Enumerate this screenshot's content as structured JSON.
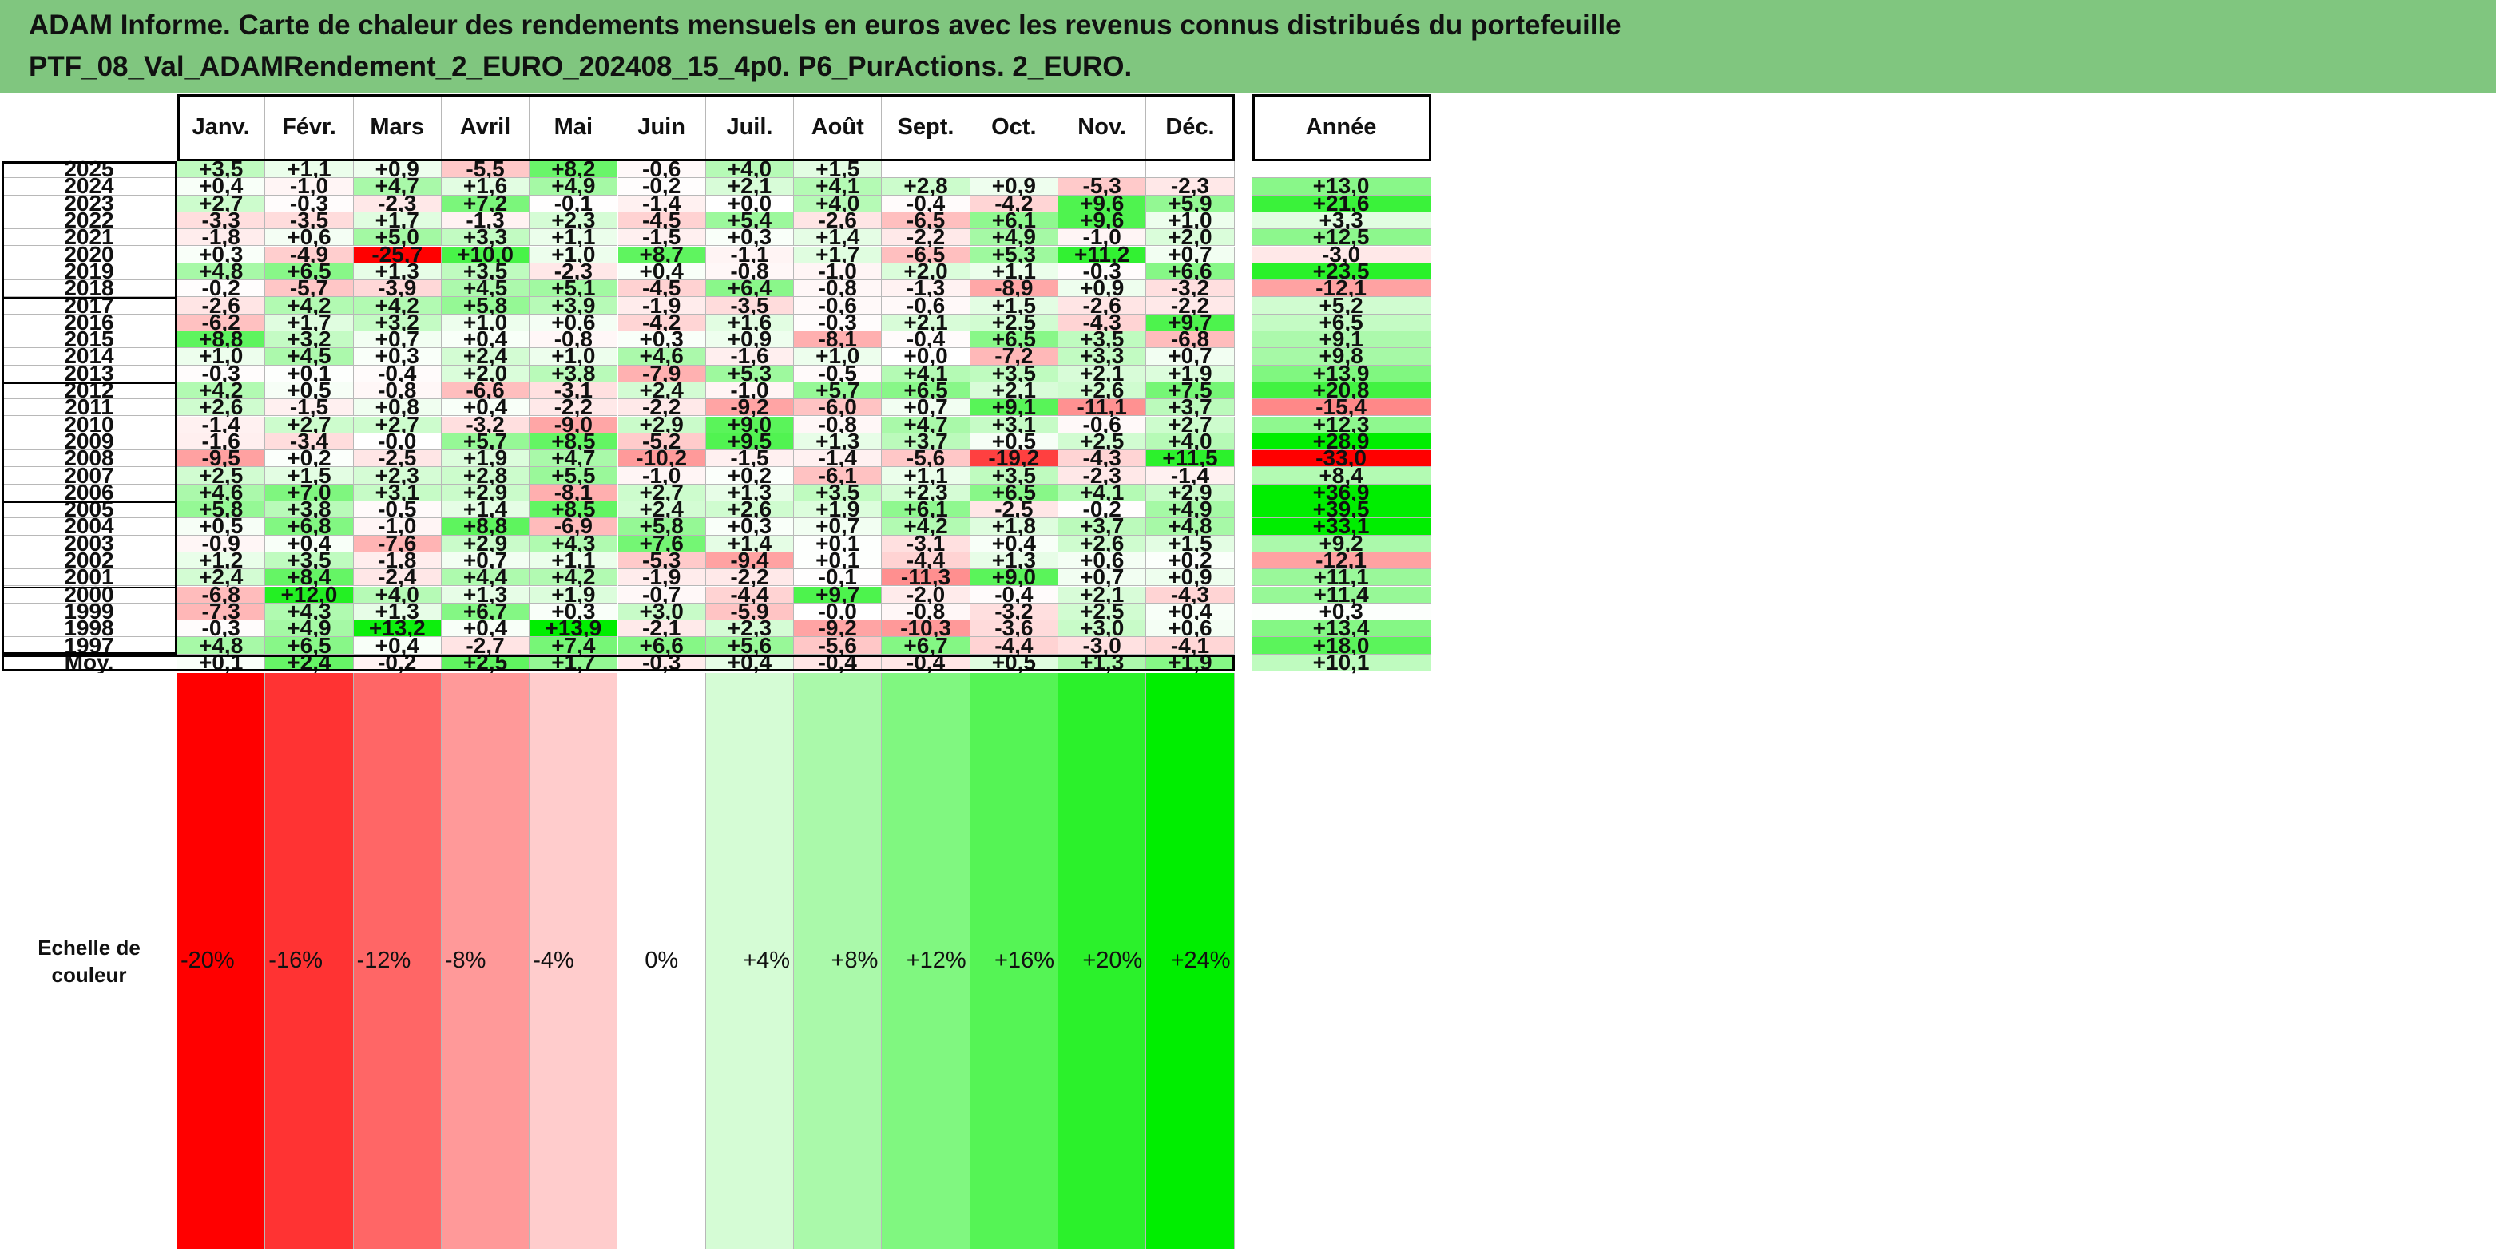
{
  "title": {
    "line1": "ADAM Informe. Carte de chaleur des rendements mensuels en euros avec les revenus connus distribués du portefeuille",
    "line2": "PTF_08_Val_ADAMRendement_2_EURO_202408_15_4p0. P6_PurActions. 2_EURO."
  },
  "colors": {
    "title_bg": "#80c67f",
    "negative_max": "#ff0000",
    "positive_max": "#00ee00"
  },
  "chart_data": {
    "type": "heatmap",
    "columns": [
      "Janv.",
      "Févr.",
      "Mars",
      "Avril",
      "Mai",
      "Juin",
      "Juil.",
      "Août",
      "Sept.",
      "Oct.",
      "Nov.",
      "Déc."
    ],
    "annual_label": "Année",
    "rows": [
      {
        "year": "2025",
        "months": [
          "+3,5",
          "+1,1",
          "+0,9",
          "-5,5",
          "+8,2",
          "-0,6",
          "+4,0",
          "+1,5",
          "",
          "",
          "",
          ""
        ],
        "annual": ""
      },
      {
        "year": "2024",
        "months": [
          "+0,4",
          "-1,0",
          "+4,7",
          "+1,6",
          "+4,9",
          "-0,2",
          "+2,1",
          "+4,1",
          "+2,8",
          "+0,9",
          "-5,3",
          "-2,3"
        ],
        "annual": "+13,0"
      },
      {
        "year": "2023",
        "months": [
          "+2,7",
          "-0,3",
          "-2,3",
          "+7,2",
          "-0,1",
          "-1,4",
          "+0,0",
          "+4,0",
          "-0,4",
          "-4,2",
          "+9,6",
          "+5,9"
        ],
        "annual": "+21,6"
      },
      {
        "year": "2022",
        "months": [
          "-3,3",
          "-3,5",
          "+1,7",
          "-1,3",
          "+2,3",
          "-4,5",
          "+5,4",
          "-2,6",
          "-6,5",
          "+6,1",
          "+9,6",
          "+1,0"
        ],
        "annual": "+3,3"
      },
      {
        "year": "2021",
        "months": [
          "-1,8",
          "+0,6",
          "+5,0",
          "+3,3",
          "+1,1",
          "-1,5",
          "+0,3",
          "+1,4",
          "-2,2",
          "+4,9",
          "-1,0",
          "+2,0"
        ],
        "annual": "+12,5"
      },
      {
        "year": "2020",
        "months": [
          "+0,3",
          "-4,9",
          "-25,7",
          "+10,0",
          "+1,0",
          "+8,7",
          "-1,1",
          "+1,7",
          "-6,5",
          "+5,3",
          "+11,2",
          "+0,7"
        ],
        "annual": "-3,0"
      },
      {
        "year": "2019",
        "months": [
          "+4,8",
          "+6,5",
          "+1,3",
          "+3,5",
          "-2,3",
          "+0,4",
          "-0,8",
          "-1,0",
          "+2,0",
          "+1,1",
          "-0,3",
          "+6,6"
        ],
        "annual": "+23,5"
      },
      {
        "year": "2018",
        "months": [
          "-0,2",
          "-5,7",
          "-3,9",
          "+4,5",
          "+5,1",
          "-4,5",
          "+6,4",
          "-0,8",
          "-1,3",
          "-8,9",
          "+0,9",
          "-3,2"
        ],
        "annual": "-12,1"
      },
      {
        "year": "2017",
        "months": [
          "-2,6",
          "+4,2",
          "+4,2",
          "+5,8",
          "+3,9",
          "-1,9",
          "-3,5",
          "-0,6",
          "-0,6",
          "+1,5",
          "-2,6",
          "-2,2"
        ],
        "annual": "+5,2"
      },
      {
        "year": "2016",
        "months": [
          "-6,2",
          "+1,7",
          "+3,2",
          "+1,0",
          "+0,6",
          "-4,2",
          "+1,6",
          "-0,3",
          "+2,1",
          "+2,5",
          "-4,3",
          "+9,7"
        ],
        "annual": "+6,5"
      },
      {
        "year": "2015",
        "months": [
          "+8,8",
          "+3,2",
          "+0,7",
          "+0,4",
          "-0,8",
          "+0,3",
          "+0,9",
          "-8,1",
          "-0,4",
          "+6,5",
          "+3,5",
          "-6,8"
        ],
        "annual": "+9,1"
      },
      {
        "year": "2014",
        "months": [
          "+1,0",
          "+4,5",
          "+0,3",
          "+2,4",
          "+1,0",
          "+4,6",
          "-1,6",
          "+1,0",
          "+0,0",
          "-7,2",
          "+3,3",
          "+0,7"
        ],
        "annual": "+9,8"
      },
      {
        "year": "2013",
        "months": [
          "-0,3",
          "+0,1",
          "-0,4",
          "+2,0",
          "+3,8",
          "-7,9",
          "+5,3",
          "-0,5",
          "+4,1",
          "+3,5",
          "+2,1",
          "+1,9"
        ],
        "annual": "+13,9"
      },
      {
        "year": "2012",
        "months": [
          "+4,2",
          "+0,5",
          "-0,8",
          "-6,6",
          "-3,1",
          "+2,4",
          "-1,0",
          "+5,7",
          "+6,5",
          "+2,1",
          "+2,6",
          "+7,5"
        ],
        "annual": "+20,8"
      },
      {
        "year": "2011",
        "months": [
          "+2,6",
          "-1,5",
          "+0,8",
          "+0,4",
          "-2,2",
          "-2,2",
          "-9,2",
          "-6,0",
          "+0,7",
          "+9,1",
          "-11,1",
          "+3,7"
        ],
        "annual": "-15,4"
      },
      {
        "year": "2010",
        "months": [
          "-1,4",
          "+2,7",
          "+2,7",
          "-3,2",
          "-9,0",
          "+2,9",
          "+9,0",
          "-0,8",
          "+4,7",
          "+3,1",
          "-0,6",
          "+2,7"
        ],
        "annual": "+12,3"
      },
      {
        "year": "2009",
        "months": [
          "-1,6",
          "-3,4",
          "-0,0",
          "+5,7",
          "+8,5",
          "-5,2",
          "+9,5",
          "+1,3",
          "+3,7",
          "+0,5",
          "+2,5",
          "+4,0"
        ],
        "annual": "+28,9"
      },
      {
        "year": "2008",
        "months": [
          "-9,5",
          "+0,2",
          "-2,5",
          "+1,9",
          "+4,7",
          "-10,2",
          "-1,5",
          "-1,4",
          "-5,6",
          "-19,2",
          "-4,3",
          "+11,5"
        ],
        "annual": "-33,0"
      },
      {
        "year": "2007",
        "months": [
          "+2,5",
          "+1,5",
          "+2,3",
          "+2,8",
          "+5,5",
          "-1,0",
          "+0,2",
          "-6,1",
          "+1,1",
          "+3,5",
          "-2,3",
          "-1,4"
        ],
        "annual": "+8,4"
      },
      {
        "year": "2006",
        "months": [
          "+4,6",
          "+7,0",
          "+3,1",
          "+2,9",
          "-8,1",
          "+2,7",
          "+1,3",
          "+3,5",
          "+2,3",
          "+6,5",
          "+4,1",
          "+2,9"
        ],
        "annual": "+36,9"
      },
      {
        "year": "2005",
        "months": [
          "+5,8",
          "+3,8",
          "-0,5",
          "+1,4",
          "+8,5",
          "+2,4",
          "+2,6",
          "+1,9",
          "+6,1",
          "-2,5",
          "-0,2",
          "+4,9"
        ],
        "annual": "+39,5"
      },
      {
        "year": "2004",
        "months": [
          "+0,5",
          "+6,8",
          "-1,0",
          "+8,8",
          "-6,9",
          "+5,8",
          "+0,3",
          "+0,7",
          "+4,2",
          "+1,8",
          "+3,7",
          "+4,8"
        ],
        "annual": "+33,1"
      },
      {
        "year": "2003",
        "months": [
          "-0,9",
          "+0,4",
          "-7,6",
          "+2,9",
          "+4,3",
          "+7,6",
          "+1,4",
          "+0,1",
          "-3,1",
          "+0,4",
          "+2,6",
          "+1,5"
        ],
        "annual": "+9,2"
      },
      {
        "year": "2002",
        "months": [
          "+1,2",
          "+3,5",
          "-1,8",
          "+0,7",
          "+1,1",
          "-5,3",
          "-9,4",
          "+0,1",
          "-4,4",
          "+1,3",
          "+0,6",
          "+0,2"
        ],
        "annual": "-12,1"
      },
      {
        "year": "2001",
        "months": [
          "+2,4",
          "+8,4",
          "-2,4",
          "+4,4",
          "+4,2",
          "-1,9",
          "-2,2",
          "-0,1",
          "-11,3",
          "+9,0",
          "+0,7",
          "+0,9"
        ],
        "annual": "+11,1"
      },
      {
        "year": "2000",
        "months": [
          "-6,8",
          "+12,0",
          "+4,0",
          "+1,3",
          "+1,9",
          "-0,7",
          "-4,4",
          "+9,7",
          "-2,0",
          "-0,4",
          "+2,1",
          "-4,3"
        ],
        "annual": "+11,4"
      },
      {
        "year": "1999",
        "months": [
          "-7,3",
          "+4,3",
          "+1,3",
          "+6,7",
          "+0,3",
          "+3,0",
          "-5,9",
          "-0,0",
          "-0,8",
          "-3,2",
          "+2,5",
          "+0,4"
        ],
        "annual": "+0,3"
      },
      {
        "year": "1998",
        "months": [
          "-0,3",
          "+4,9",
          "+13,2",
          "+0,4",
          "+13,9",
          "-2,1",
          "+2,3",
          "-9,2",
          "-10,3",
          "-3,6",
          "+3,0",
          "+0,6"
        ],
        "annual": "+13,4"
      },
      {
        "year": "1997",
        "months": [
          "+4,8",
          "+6,5",
          "+0,4",
          "-2,7",
          "+7,4",
          "+6,6",
          "+5,6",
          "-5,6",
          "+6,7",
          "-4,4",
          "-3,0",
          "-4,1"
        ],
        "annual": "+18,0"
      }
    ],
    "average": {
      "label": "Moy.",
      "months": [
        "+0,1",
        "+2,4",
        "-0,2",
        "+2,5",
        "+1,7",
        "-0,3",
        "+0,4",
        "-0,4",
        "-0,4",
        "+0,5",
        "+1,3",
        "+1,9"
      ],
      "annual": "+10,1"
    },
    "scale": {
      "label_line1": "Echelle de",
      "label_line2": "couleur",
      "steps": [
        "-20%",
        "-16%",
        "-12%",
        "-8%",
        "-4%",
        "0%",
        "+4%",
        "+8%",
        "+12%",
        "+16%",
        "+20%",
        "+24%"
      ]
    }
  }
}
